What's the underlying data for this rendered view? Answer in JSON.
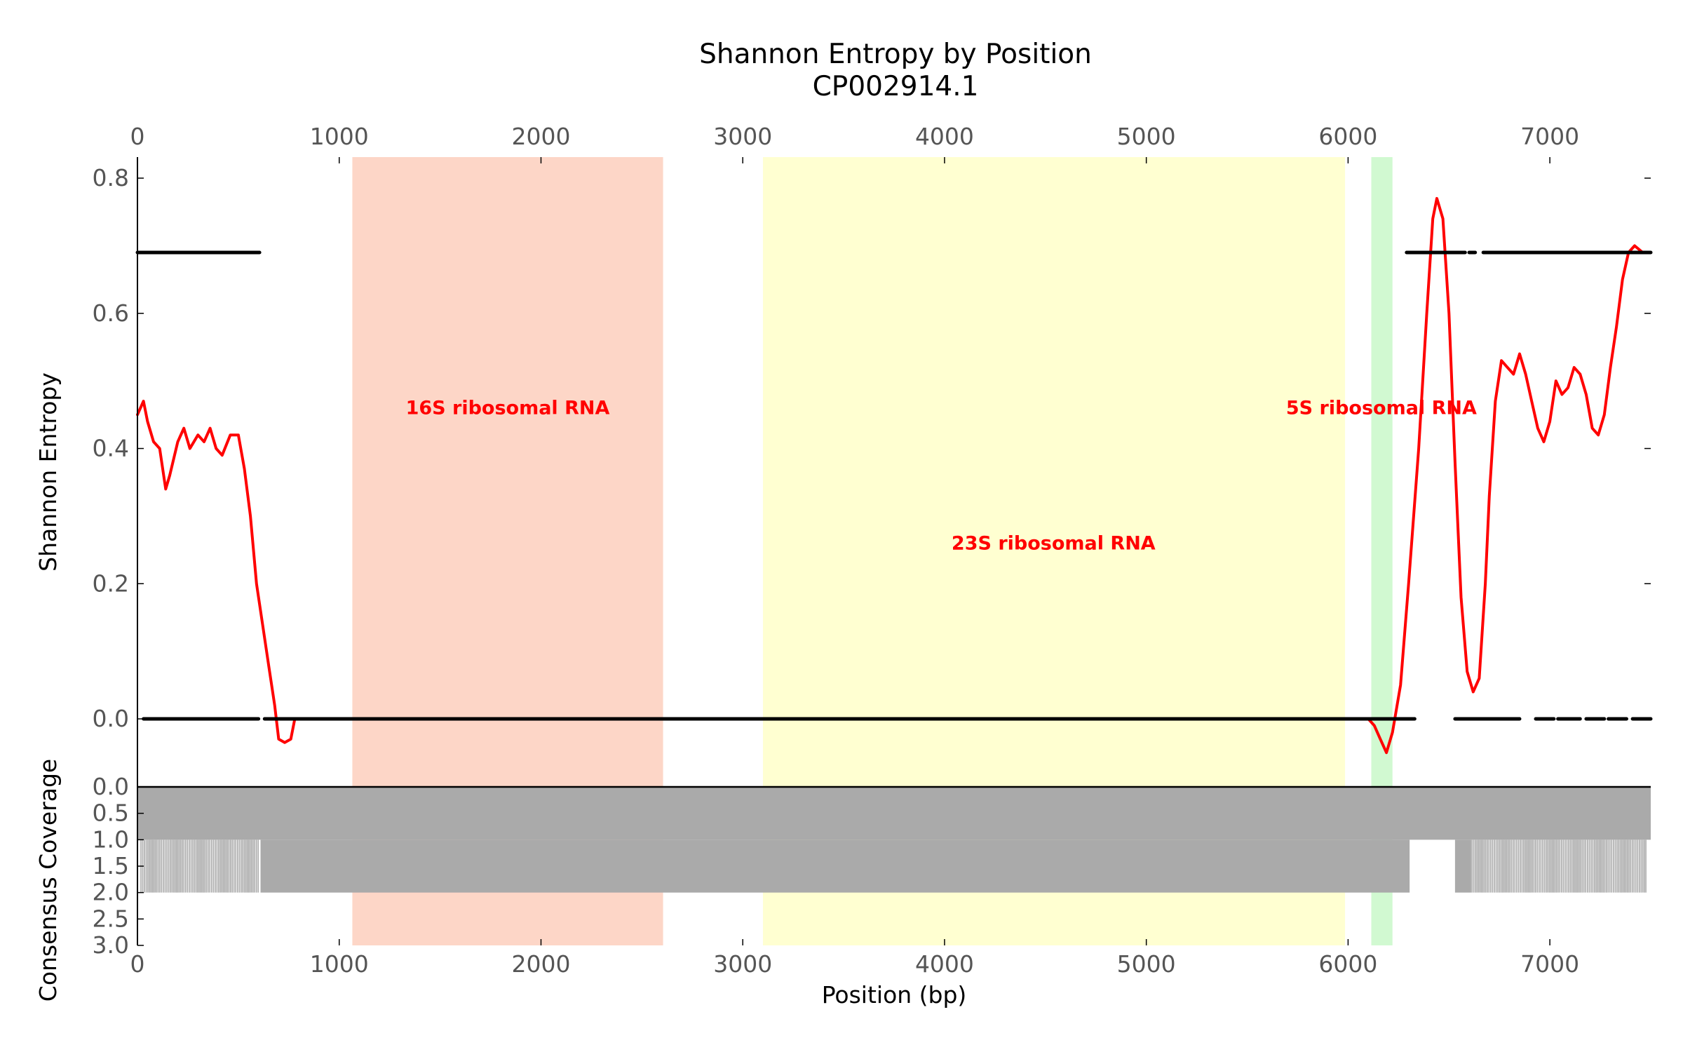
{
  "chart_data": {
    "type": "line",
    "title": "Shannon Entropy by Position",
    "subtitle": "CP002914.1",
    "xlabel": "Position (bp)",
    "ylabel": "Shannon Entropy",
    "coverage_label": "Consensus Coverage",
    "xlim": [
      0,
      7500
    ],
    "ylim": [
      -0.1,
      0.83
    ],
    "coverage_lim": [
      0,
      3
    ],
    "x_ticks": [
      "0",
      "1000",
      "2000",
      "3000",
      "4000",
      "5000",
      "6000",
      "7000"
    ],
    "y_ticks": [
      {
        "value": 0.0,
        "label": "0.0"
      },
      {
        "value": 0.2,
        "label": "0.2"
      },
      {
        "value": 0.4,
        "label": "0.4"
      },
      {
        "value": 0.6,
        "label": "0.6"
      },
      {
        "value": 0.8,
        "label": "0.8"
      }
    ],
    "coverage_ticks": [
      "0.0",
      "0.5",
      "1.0",
      "1.5",
      "2.0",
      "2.5",
      "3.0"
    ],
    "regions": [
      {
        "label": "16S ribosomal RNA",
        "start": 1065,
        "end": 2605,
        "color": "#fcbba1",
        "label_x": 1835,
        "label_y": 0.46
      },
      {
        "label": "23S ribosomal RNA",
        "start": 3100,
        "end": 5985,
        "color": "#ffffb2",
        "label_x": 4540,
        "label_y": 0.26
      },
      {
        "label": "5S ribosomal RNA",
        "start": 6115,
        "end": 6220,
        "color": "#b2f5b2",
        "label_x": 6165,
        "label_y": 0.46
      }
    ],
    "series": [
      {
        "type": "line",
        "color": "#ff0000",
        "x": [
          0,
          30,
          50,
          80,
          110,
          140,
          160,
          200,
          230,
          260,
          300,
          330,
          360,
          390,
          420,
          460,
          500,
          530,
          560,
          590,
          620,
          650,
          680,
          700,
          730,
          760,
          780,
          800,
          1000,
          3000,
          5000,
          6000,
          6100,
          6130,
          6160,
          6190,
          6220,
          6260,
          6300,
          6350,
          6390,
          6420,
          6440,
          6470,
          6500,
          6530,
          6560,
          6590,
          6620,
          6650,
          6680,
          6700,
          6730,
          6760,
          6790,
          6820,
          6850,
          6880,
          6910,
          6940,
          6970,
          7000,
          7030,
          7060,
          7090,
          7120,
          7150,
          7180,
          7210,
          7240,
          7270,
          7300,
          7330,
          7360,
          7390,
          7420,
          7460,
          7500
        ],
        "y": [
          0.45,
          0.47,
          0.44,
          0.41,
          0.4,
          0.34,
          0.36,
          0.41,
          0.43,
          0.4,
          0.42,
          0.41,
          0.43,
          0.4,
          0.39,
          0.42,
          0.42,
          0.37,
          0.3,
          0.2,
          0.14,
          0.08,
          0.02,
          -0.03,
          -0.035,
          -0.03,
          0.0,
          0.0,
          0.0,
          0.0,
          0.0,
          0.0,
          0.0,
          -0.01,
          -0.03,
          -0.05,
          -0.02,
          0.05,
          0.2,
          0.4,
          0.6,
          0.74,
          0.77,
          0.74,
          0.6,
          0.38,
          0.18,
          0.07,
          0.04,
          0.06,
          0.2,
          0.33,
          0.47,
          0.53,
          0.52,
          0.51,
          0.54,
          0.51,
          0.47,
          0.43,
          0.41,
          0.44,
          0.5,
          0.48,
          0.49,
          0.52,
          0.51,
          0.48,
          0.43,
          0.42,
          0.45,
          0.52,
          0.58,
          0.65,
          0.69,
          0.7,
          0.69,
          0.69
        ]
      },
      {
        "type": "scatter",
        "color": "#000000",
        "segments": [
          {
            "x_start": 0,
            "x_end": 605,
            "y": 0.69
          },
          {
            "x_start": 6290,
            "x_end": 6580,
            "y": 0.69
          },
          {
            "x_start": 6600,
            "x_end": 6630,
            "y": 0.69
          },
          {
            "x_start": 6670,
            "x_end": 7500,
            "y": 0.69
          },
          {
            "x_start": 30,
            "x_end": 600,
            "y": 0.0
          },
          {
            "x_start": 630,
            "x_end": 6330,
            "y": 0.0
          },
          {
            "x_start": 6530,
            "x_end": 6850,
            "y": 0.0
          },
          {
            "x_start": 6930,
            "x_end": 7020,
            "y": 0.0
          },
          {
            "x_start": 7040,
            "x_end": 7150,
            "y": 0.0
          },
          {
            "x_start": 7180,
            "x_end": 7270,
            "y": 0.0
          },
          {
            "x_start": 7290,
            "x_end": 7380,
            "y": 0.0
          },
          {
            "x_start": 7410,
            "x_end": 7500,
            "y": 0.0
          }
        ]
      }
    ],
    "coverage": {
      "color": "#aaaaaa",
      "base": 1.0,
      "full_segments": [
        {
          "x_start": 610,
          "x_end": 6305,
          "value": 2.0
        },
        {
          "x_start": 6530,
          "x_end": 6610,
          "value": 2.0
        }
      ],
      "partial_segments": [
        {
          "x_start": 15,
          "x_end": 605,
          "value": 2.0
        },
        {
          "x_start": 6610,
          "x_end": 7480,
          "value": 2.0
        }
      ]
    }
  }
}
